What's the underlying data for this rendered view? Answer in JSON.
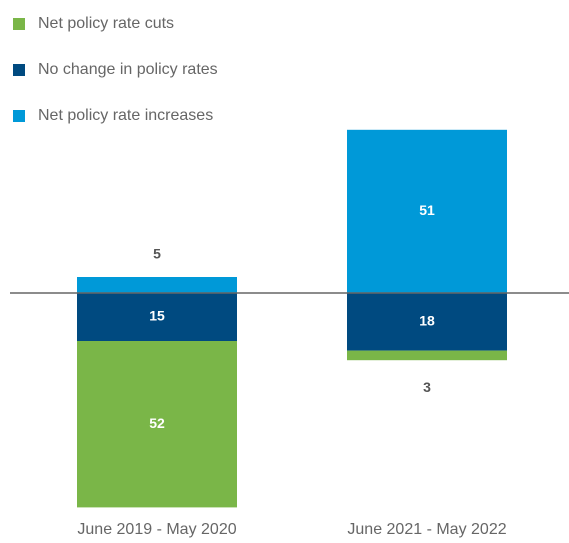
{
  "chart_data": {
    "type": "diverging-stacked-bar",
    "categories": [
      "June 2019 - May 2020",
      "June 2021 - May 2022"
    ],
    "series": [
      {
        "name": "Net policy rate cuts",
        "color": "#7ab648",
        "direction": "down",
        "values": [
          52,
          3
        ]
      },
      {
        "name": "No change in policy rates",
        "color": "#004a80",
        "direction": "down",
        "values": [
          15,
          18
        ]
      },
      {
        "name": "Net policy rate increases",
        "color": "#0099d8",
        "direction": "up",
        "values": [
          5,
          51
        ]
      }
    ]
  }
}
